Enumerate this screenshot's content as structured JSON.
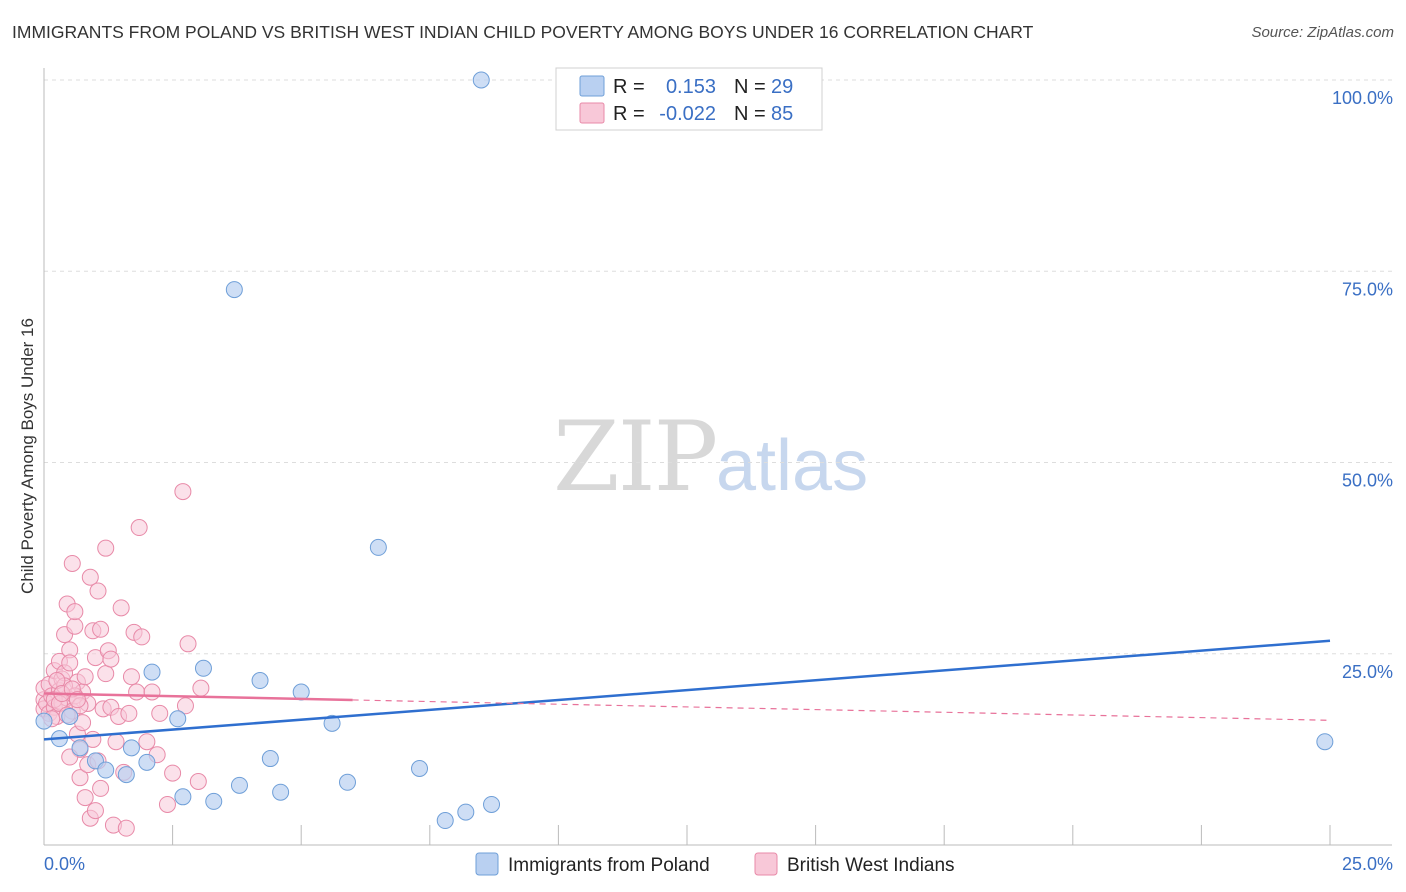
{
  "header": {
    "title": "IMMIGRANTS FROM POLAND VS BRITISH WEST INDIAN CHILD POVERTY AMONG BOYS UNDER 16 CORRELATION CHART",
    "source": "Source: ZipAtlas.com"
  },
  "watermark": {
    "part1": "ZIP",
    "part2": "atlas"
  },
  "colors": {
    "blue_fill": "#b9d0f1",
    "blue_stroke": "#6f9fd8",
    "blue_line": "#2f6fcf",
    "pink_fill": "#f8c8d8",
    "pink_stroke": "#e88aa8",
    "pink_line": "#e8729a",
    "tick_label": "#3a6fc4",
    "grid": "#dddddd"
  },
  "legend": {
    "rows": [
      {
        "r_label": "R =",
        "r_value": "0.153",
        "n_label": "N =",
        "n_value": "29"
      },
      {
        "r_label": "R =",
        "r_value": "-0.022",
        "n_label": "N =",
        "n_value": "85"
      }
    ]
  },
  "chart_data": {
    "type": "scatter",
    "title": "IMMIGRANTS FROM POLAND VS BRITISH WEST INDIAN CHILD POVERTY AMONG BOYS UNDER 16 CORRELATION CHART",
    "xlabel": "",
    "ylabel": "Child Poverty Among Boys Under 16",
    "xlim": [
      0,
      25
    ],
    "ylim": [
      0,
      100
    ],
    "x_tick_labels": [
      "0.0%",
      "25.0%"
    ],
    "y_ticks": [
      25,
      50,
      75,
      100
    ],
    "y_tick_labels": [
      "25.0%",
      "50.0%",
      "75.0%",
      "100.0%"
    ],
    "grid": true,
    "legend_position": "top-center",
    "series": [
      {
        "name": "Immigrants from Poland",
        "r": 0.153,
        "n": 29,
        "trend": {
          "x0": 0.0,
          "y0": 13.8,
          "x1": 25.0,
          "y1": 26.7,
          "solid_to": 25.0
        },
        "points": [
          [
            0.0,
            16.2
          ],
          [
            0.3,
            13.9
          ],
          [
            0.5,
            16.8
          ],
          [
            0.7,
            12.7
          ],
          [
            1.0,
            11.0
          ],
          [
            1.2,
            9.8
          ],
          [
            1.6,
            9.2
          ],
          [
            1.7,
            12.7
          ],
          [
            2.0,
            10.8
          ],
          [
            2.1,
            22.6
          ],
          [
            2.6,
            16.5
          ],
          [
            2.7,
            6.3
          ],
          [
            3.1,
            23.1
          ],
          [
            3.3,
            5.7
          ],
          [
            3.7,
            72.6
          ],
          [
            3.8,
            7.8
          ],
          [
            4.2,
            21.5
          ],
          [
            4.4,
            11.3
          ],
          [
            4.6,
            6.9
          ],
          [
            5.0,
            20.0
          ],
          [
            5.6,
            15.9
          ],
          [
            5.9,
            8.2
          ],
          [
            6.5,
            38.9
          ],
          [
            7.3,
            10.0
          ],
          [
            7.8,
            3.2
          ],
          [
            8.2,
            4.3
          ],
          [
            8.7,
            5.3
          ],
          [
            8.5,
            100.0
          ],
          [
            24.9,
            13.5
          ]
        ]
      },
      {
        "name": "British West Indians",
        "r": -0.022,
        "n": 85,
        "trend": {
          "x0": 0.0,
          "y0": 19.8,
          "x1": 25.0,
          "y1": 16.3,
          "solid_to": 6.0
        },
        "points": [
          [
            0.0,
            19.0
          ],
          [
            0.0,
            20.5
          ],
          [
            0.0,
            17.8
          ],
          [
            0.05,
            18.5
          ],
          [
            0.1,
            21.0
          ],
          [
            0.1,
            17.2
          ],
          [
            0.15,
            19.5
          ],
          [
            0.2,
            18.0
          ],
          [
            0.2,
            22.8
          ],
          [
            0.25,
            16.8
          ],
          [
            0.3,
            20.2
          ],
          [
            0.3,
            24.0
          ],
          [
            0.35,
            18.6
          ],
          [
            0.35,
            21.7
          ],
          [
            0.4,
            22.5
          ],
          [
            0.4,
            27.5
          ],
          [
            0.45,
            31.5
          ],
          [
            0.45,
            19.2
          ],
          [
            0.5,
            25.5
          ],
          [
            0.5,
            23.8
          ],
          [
            0.55,
            17.5
          ],
          [
            0.55,
            36.8
          ],
          [
            0.6,
            28.6
          ],
          [
            0.6,
            30.5
          ],
          [
            0.65,
            21.3
          ],
          [
            0.65,
            14.5
          ],
          [
            0.7,
            12.5
          ],
          [
            0.7,
            8.8
          ],
          [
            0.75,
            16.0
          ],
          [
            0.75,
            20.0
          ],
          [
            0.8,
            6.2
          ],
          [
            0.8,
            22.0
          ],
          [
            0.85,
            10.5
          ],
          [
            0.85,
            18.5
          ],
          [
            0.9,
            35.0
          ],
          [
            0.9,
            3.5
          ],
          [
            0.95,
            28.0
          ],
          [
            0.95,
            13.8
          ],
          [
            1.0,
            24.5
          ],
          [
            1.0,
            4.5
          ],
          [
            1.05,
            11.0
          ],
          [
            1.05,
            33.2
          ],
          [
            1.1,
            28.2
          ],
          [
            1.1,
            7.4
          ],
          [
            1.15,
            17.8
          ],
          [
            1.2,
            38.8
          ],
          [
            1.2,
            22.4
          ],
          [
            1.25,
            25.4
          ],
          [
            1.3,
            18.0
          ],
          [
            1.3,
            24.3
          ],
          [
            1.35,
            2.6
          ],
          [
            1.4,
            13.5
          ],
          [
            1.45,
            16.8
          ],
          [
            1.5,
            31.0
          ],
          [
            1.55,
            9.5
          ],
          [
            1.6,
            2.2
          ],
          [
            1.65,
            17.2
          ],
          [
            1.7,
            22.0
          ],
          [
            1.75,
            27.8
          ],
          [
            1.8,
            20.0
          ],
          [
            1.85,
            41.5
          ],
          [
            1.9,
            27.2
          ],
          [
            2.0,
            13.5
          ],
          [
            2.1,
            20.0
          ],
          [
            2.2,
            11.8
          ],
          [
            2.25,
            17.2
          ],
          [
            2.4,
            5.3
          ],
          [
            2.5,
            9.4
          ],
          [
            2.7,
            46.2
          ],
          [
            2.75,
            18.2
          ],
          [
            2.8,
            26.3
          ],
          [
            3.0,
            8.3
          ],
          [
            3.05,
            20.5
          ],
          [
            0.15,
            16.5
          ],
          [
            0.5,
            11.5
          ],
          [
            0.2,
            19.0
          ],
          [
            0.3,
            18.5
          ],
          [
            0.4,
            20.8
          ],
          [
            0.6,
            19.5
          ],
          [
            0.7,
            18.2
          ],
          [
            0.25,
            21.5
          ],
          [
            0.35,
            19.8
          ],
          [
            0.45,
            17.0
          ],
          [
            0.55,
            20.4
          ],
          [
            0.65,
            19.0
          ]
        ]
      }
    ]
  }
}
